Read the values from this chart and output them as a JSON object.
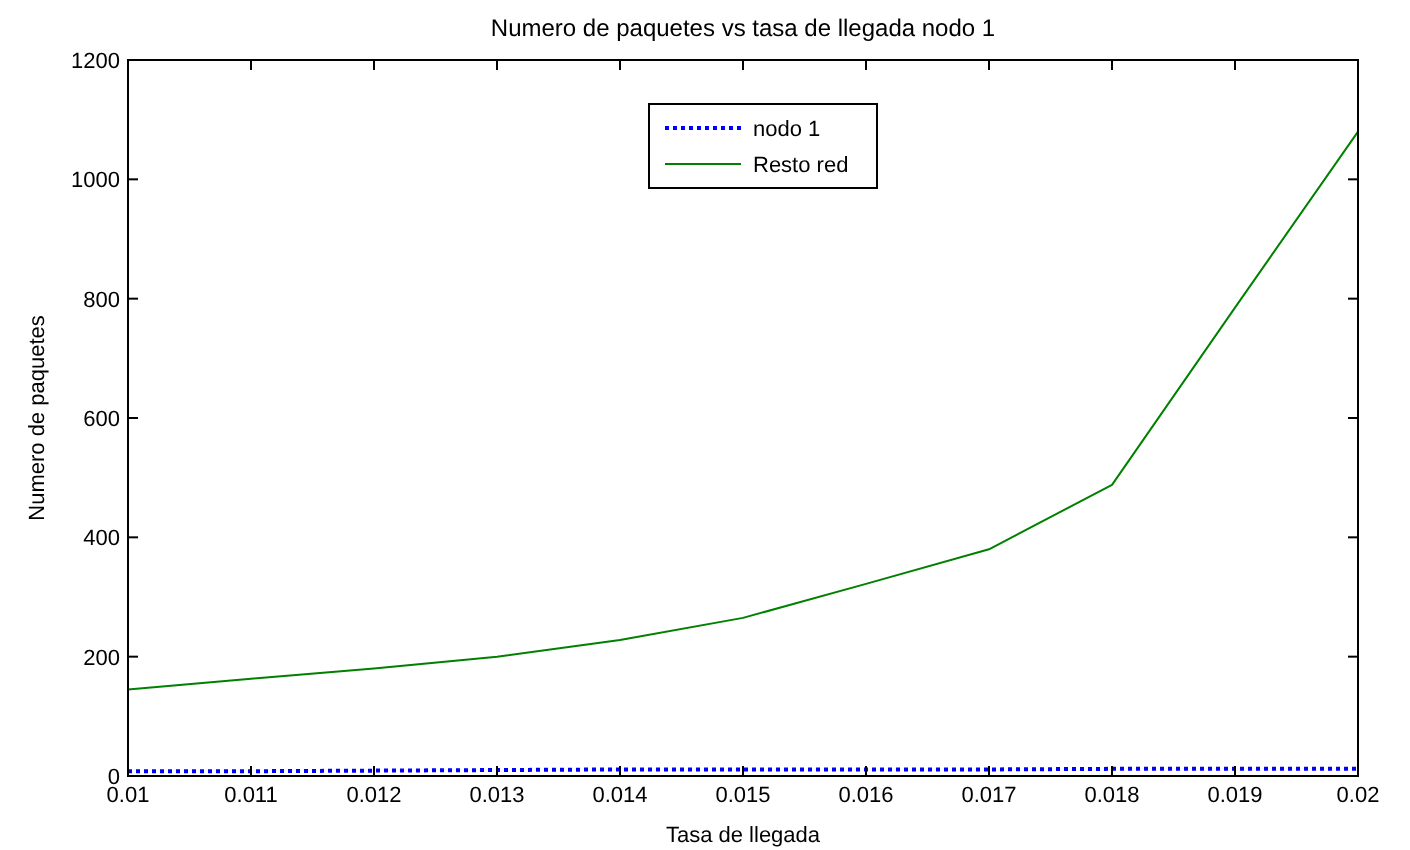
{
  "chart_data": {
    "type": "line",
    "title": "Numero de paquetes vs tasa de llegada nodo 1",
    "xlabel": "Tasa de llegada",
    "ylabel": "Numero de paquetes",
    "x": [
      0.01,
      0.011,
      0.012,
      0.013,
      0.014,
      0.015,
      0.016,
      0.017,
      0.018,
      0.019,
      0.02
    ],
    "series": [
      {
        "name": "nodo 1",
        "color": "#0000ff",
        "line_style": "dotted",
        "values": [
          8,
          8,
          9,
          10,
          11,
          11,
          11,
          11,
          12,
          12,
          12
        ]
      },
      {
        "name": "Resto red",
        "color": "#008000",
        "line_style": "solid",
        "values": [
          145,
          163,
          180,
          200,
          228,
          265,
          322,
          380,
          488,
          785,
          1080
        ]
      }
    ],
    "xlim": [
      0.01,
      0.02
    ],
    "xticks": [
      0.01,
      0.011,
      0.012,
      0.013,
      0.014,
      0.015,
      0.016,
      0.017,
      0.018,
      0.019,
      0.02
    ],
    "ylim": [
      0,
      1200
    ],
    "yticks": [
      0,
      200,
      400,
      600,
      800,
      1000,
      1200
    ],
    "grid": false,
    "legend": "top",
    "marker": "none"
  }
}
